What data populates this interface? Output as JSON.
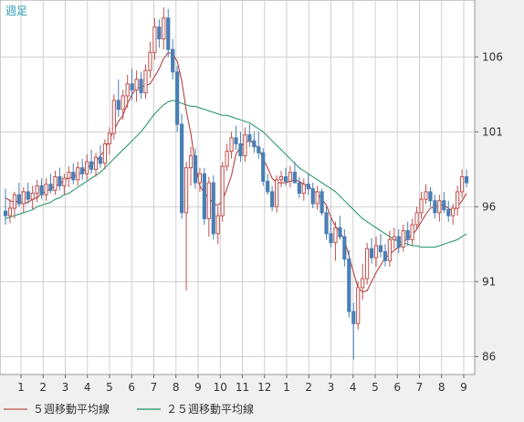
{
  "chart_data": {
    "type": "candlestick",
    "period_label": "週足",
    "y_ticks": [
      106,
      101,
      96,
      91,
      86
    ],
    "ylim": [
      84.8,
      109.8
    ],
    "x_tick_labels": [
      "1",
      "2",
      "3",
      "4",
      "5",
      "6",
      "7",
      "8",
      "9",
      "10",
      "11",
      "12",
      "1",
      "2",
      "3",
      "4",
      "5",
      "6",
      "7",
      "8",
      "9"
    ],
    "up_color": "#c0504d",
    "down_color": "#4a7fb5",
    "ma5_color": "#b03030",
    "ma25_color": "#1a9060",
    "grid": true,
    "legend_position": "bottom-left",
    "candles": [
      [
        95.7,
        97.2,
        94.8,
        95.4
      ],
      [
        95.4,
        96.5,
        94.9,
        95.9
      ],
      [
        95.9,
        97.0,
        95.2,
        96.8
      ],
      [
        96.8,
        97.6,
        96.0,
        96.2
      ],
      [
        96.2,
        97.3,
        95.6,
        97.0
      ],
      [
        97.0,
        97.6,
        96.2,
        96.5
      ],
      [
        96.5,
        97.4,
        95.8,
        96.9
      ],
      [
        96.9,
        97.8,
        96.3,
        97.4
      ],
      [
        97.4,
        97.9,
        96.5,
        96.8
      ],
      [
        96.8,
        97.9,
        96.4,
        97.5
      ],
      [
        97.5,
        98.2,
        96.9,
        97.1
      ],
      [
        97.1,
        98.4,
        96.8,
        98.0
      ],
      [
        98.0,
        98.6,
        97.1,
        97.4
      ],
      [
        97.4,
        98.2,
        96.8,
        97.9
      ],
      [
        97.9,
        98.7,
        97.3,
        98.3
      ],
      [
        98.3,
        98.9,
        97.5,
        97.8
      ],
      [
        97.8,
        99.0,
        97.4,
        98.6
      ],
      [
        98.6,
        99.2,
        97.8,
        98.2
      ],
      [
        98.2,
        99.5,
        97.8,
        99.0
      ],
      [
        99.0,
        99.8,
        98.2,
        98.5
      ],
      [
        98.5,
        99.6,
        98.0,
        99.3
      ],
      [
        99.3,
        100.1,
        98.6,
        98.9
      ],
      [
        98.9,
        100.5,
        98.5,
        100.2
      ],
      [
        100.2,
        101.3,
        99.5,
        100.9
      ],
      [
        100.9,
        103.5,
        100.5,
        103.1
      ],
      [
        103.1,
        104.5,
        102.0,
        102.5
      ],
      [
        102.5,
        103.8,
        101.8,
        103.4
      ],
      [
        103.4,
        104.8,
        102.6,
        104.2
      ],
      [
        104.2,
        105.2,
        103.1,
        103.8
      ],
      [
        103.8,
        105.1,
        103.0,
        104.5
      ],
      [
        104.5,
        105.0,
        103.2,
        103.6
      ],
      [
        103.6,
        105.5,
        103.2,
        105.1
      ],
      [
        105.1,
        107.0,
        104.6,
        106.3
      ],
      [
        106.3,
        108.6,
        105.8,
        108.0
      ],
      [
        108.0,
        108.5,
        106.6,
        107.2
      ],
      [
        107.2,
        109.3,
        106.5,
        108.6
      ],
      [
        108.6,
        109.2,
        106.0,
        106.5
      ],
      [
        106.5,
        107.2,
        104.5,
        105.0
      ],
      [
        105.0,
        105.4,
        101.0,
        101.5
      ],
      [
        101.5,
        102.2,
        95.2,
        95.6
      ],
      [
        95.6,
        99.0,
        90.4,
        98.6
      ],
      [
        98.6,
        100.0,
        97.4,
        99.4
      ],
      [
        99.4,
        99.9,
        97.2,
        97.6
      ],
      [
        97.6,
        98.6,
        97.0,
        98.2
      ],
      [
        98.2,
        98.6,
        94.8,
        95.2
      ],
      [
        95.2,
        98.0,
        94.0,
        97.6
      ],
      [
        97.6,
        98.1,
        93.8,
        94.2
      ],
      [
        94.2,
        96.0,
        93.5,
        95.4
      ],
      [
        95.4,
        99.0,
        95.0,
        98.7
      ],
      [
        98.7,
        100.2,
        98.4,
        99.7
      ],
      [
        99.7,
        101.0,
        99.2,
        100.6
      ],
      [
        100.6,
        101.4,
        99.8,
        100.2
      ],
      [
        100.2,
        101.0,
        99.0,
        99.4
      ],
      [
        99.4,
        101.3,
        99.0,
        100.8
      ],
      [
        100.8,
        101.5,
        100.0,
        100.4
      ],
      [
        100.4,
        101.0,
        99.6,
        100.0
      ],
      [
        100.0,
        101.0,
        99.2,
        99.6
      ],
      [
        99.6,
        99.9,
        97.4,
        97.7
      ],
      [
        97.7,
        98.2,
        96.8,
        97.0
      ],
      [
        97.0,
        97.4,
        95.7,
        96.0
      ],
      [
        96.0,
        98.1,
        95.6,
        97.8
      ],
      [
        97.8,
        98.4,
        97.3,
        98.0
      ],
      [
        98.0,
        98.6,
        97.4,
        97.7
      ],
      [
        97.7,
        98.7,
        97.3,
        98.3
      ],
      [
        98.3,
        99.0,
        97.6,
        97.6
      ],
      [
        97.6,
        98.0,
        96.6,
        96.9
      ],
      [
        96.9,
        97.9,
        96.4,
        97.5
      ],
      [
        97.5,
        98.2,
        96.8,
        97.2
      ],
      [
        97.2,
        97.6,
        95.9,
        96.2
      ],
      [
        96.2,
        97.4,
        95.8,
        97.0
      ],
      [
        97.0,
        97.2,
        95.4,
        95.6
      ],
      [
        95.6,
        96.0,
        93.8,
        94.2
      ],
      [
        94.2,
        95.2,
        93.3,
        93.6
      ],
      [
        93.6,
        95.0,
        92.4,
        94.6
      ],
      [
        94.6,
        95.4,
        93.8,
        94.0
      ],
      [
        94.0,
        94.5,
        92.0,
        92.5
      ],
      [
        92.5,
        93.1,
        88.6,
        89.0
      ],
      [
        89.0,
        89.6,
        85.8,
        88.2
      ],
      [
        88.2,
        91.0,
        87.8,
        90.6
      ],
      [
        90.6,
        92.2,
        89.8,
        91.2
      ],
      [
        91.2,
        93.6,
        90.8,
        93.2
      ],
      [
        93.2,
        93.9,
        92.2,
        92.6
      ],
      [
        92.6,
        94.0,
        92.0,
        93.4
      ],
      [
        93.4,
        94.2,
        92.6,
        93.0
      ],
      [
        93.0,
        93.5,
        92.0,
        92.4
      ],
      [
        92.4,
        94.4,
        92.0,
        93.8
      ],
      [
        93.8,
        94.6,
        93.2,
        94.0
      ],
      [
        94.0,
        94.5,
        92.9,
        93.3
      ],
      [
        93.3,
        94.8,
        93.0,
        94.4
      ],
      [
        94.4,
        95.0,
        93.4,
        93.8
      ],
      [
        93.8,
        95.2,
        93.4,
        94.8
      ],
      [
        94.8,
        96.0,
        94.5,
        95.6
      ],
      [
        95.6,
        97.0,
        95.2,
        96.5
      ],
      [
        96.5,
        97.5,
        96.2,
        97.0
      ],
      [
        97.0,
        97.3,
        96.0,
        96.4
      ],
      [
        96.4,
        96.8,
        95.2,
        95.6
      ],
      [
        95.6,
        96.8,
        95.0,
        96.4
      ],
      [
        96.4,
        97.0,
        95.6,
        95.8
      ],
      [
        95.8,
        96.4,
        95.0,
        95.4
      ],
      [
        95.4,
        96.2,
        94.8,
        95.9
      ],
      [
        95.9,
        97.4,
        95.4,
        97.0
      ],
      [
        97.0,
        98.5,
        96.6,
        98.0
      ],
      [
        98.0,
        98.5,
        97.3,
        97.6
      ]
    ],
    "ma5": [
      96.6,
      96.4,
      96.3,
      96.4,
      96.2,
      96.3,
      96.5,
      96.6,
      96.9,
      97.0,
      97.2,
      97.4,
      97.5,
      97.8,
      97.9,
      98.0,
      98.1,
      98.3,
      98.6,
      98.8,
      99.0,
      99.4,
      99.8,
      100.5,
      101.1,
      101.7,
      102.1,
      102.9,
      103.5,
      103.9,
      104.0,
      104.1,
      104.2,
      104.7,
      105.2,
      105.9,
      106.3,
      106.2,
      105.7,
      104.4,
      102.4,
      100.9,
      98.8,
      97.4,
      96.9,
      96.6,
      96.2,
      96.1,
      96.4,
      97.2,
      98.1,
      99.5,
      100.0,
      100.3,
      100.4,
      100.2,
      99.9,
      99.2,
      98.6,
      97.9,
      97.6,
      97.6,
      97.6,
      97.7,
      97.8,
      97.7,
      97.5,
      97.4,
      97.1,
      96.9,
      96.5,
      96.1,
      95.3,
      94.7,
      94.3,
      93.8,
      92.7,
      91.6,
      90.6,
      90.3,
      90.4,
      91.0,
      91.6,
      92.1,
      92.6,
      92.8,
      93.1,
      93.3,
      93.6,
      93.9,
      94.1,
      94.5,
      95.0,
      95.5,
      95.9,
      96.0,
      96.1,
      96.1,
      95.9,
      95.7,
      96.0,
      96.4,
      96.9
    ],
    "ma25": [
      95.2,
      95.3,
      95.4,
      95.5,
      95.6,
      95.7,
      95.8,
      96.0,
      96.1,
      96.2,
      96.3,
      96.5,
      96.6,
      96.8,
      96.9,
      97.1,
      97.3,
      97.5,
      97.7,
      97.9,
      98.1,
      98.3,
      98.6,
      98.9,
      99.2,
      99.5,
      99.8,
      100.1,
      100.4,
      100.7,
      101.0,
      101.4,
      101.8,
      102.2,
      102.5,
      102.8,
      103.0,
      103.1,
      103.0,
      102.9,
      102.8,
      102.7,
      102.7,
      102.6,
      102.5,
      102.4,
      102.3,
      102.2,
      102.1,
      102.1,
      102.0,
      101.9,
      101.8,
      101.7,
      101.6,
      101.4,
      101.2,
      101.0,
      100.7,
      100.4,
      100.1,
      99.8,
      99.5,
      99.2,
      98.9,
      98.6,
      98.4,
      98.2,
      98.0,
      97.8,
      97.6,
      97.4,
      97.2,
      97.0,
      96.7,
      96.4,
      96.1,
      95.8,
      95.5,
      95.2,
      95.0,
      94.8,
      94.6,
      94.4,
      94.2,
      94.0,
      93.8,
      93.7,
      93.6,
      93.5,
      93.4,
      93.4,
      93.3,
      93.3,
      93.3,
      93.3,
      93.4,
      93.5,
      93.6,
      93.7,
      93.8,
      94.0,
      94.2
    ]
  },
  "legend": [
    {
      "label": "５週移動平均線",
      "color": "#c0504d"
    },
    {
      "label": "２５週移動平均線",
      "color": "#1a9060"
    }
  ]
}
